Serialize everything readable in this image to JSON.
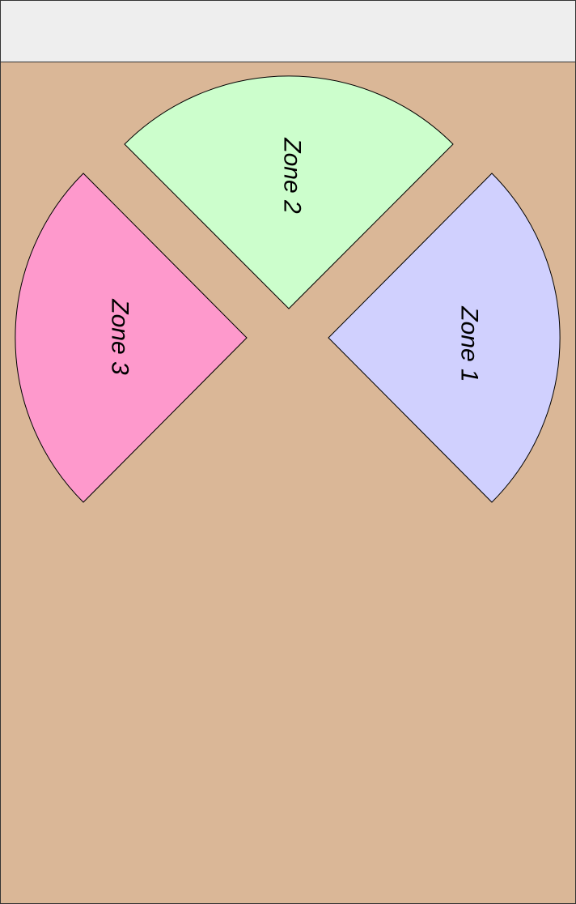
{
  "colors": {
    "header_bar": "#eeeeee",
    "background": "#dab797",
    "outline": "#333333"
  },
  "zones": [
    {
      "id": "zone-1",
      "label": "Zone 1",
      "color": "#d0d0fe"
    },
    {
      "id": "zone-2",
      "label": "Zone 2",
      "color": "#ccfecc"
    },
    {
      "id": "zone-3",
      "label": "Zone 3",
      "color": "#fe99cc"
    }
  ]
}
